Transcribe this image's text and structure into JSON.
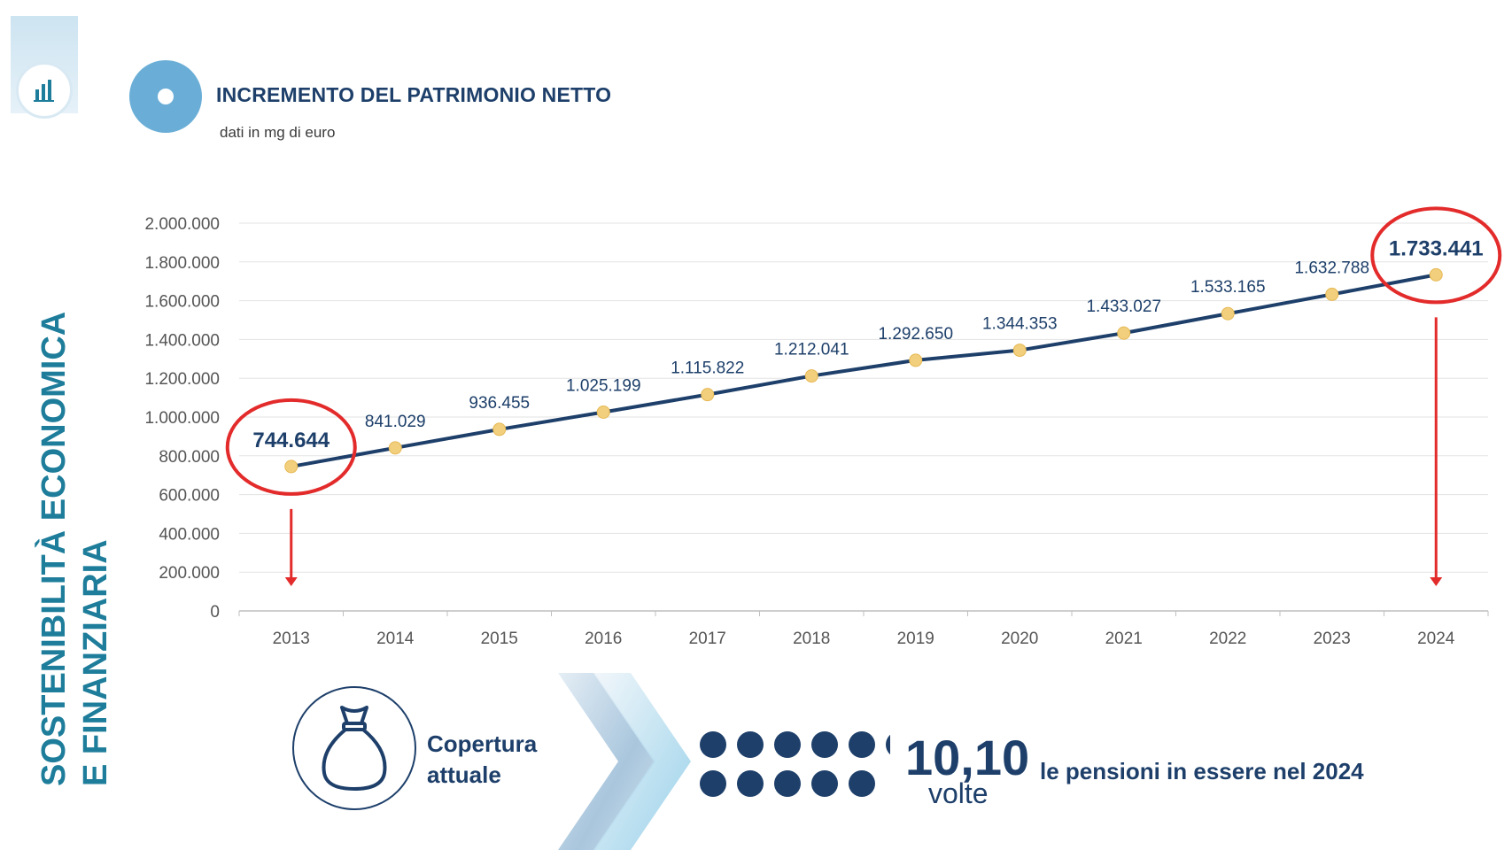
{
  "header": {
    "title": "INCREMENTO DEL PATRIMONIO NETTO",
    "subtitle": "dati in mg di euro"
  },
  "sidebar": {
    "line1": "SOSTENIBILITÀ ECONOMICA",
    "line2": "E FINANZIARIA"
  },
  "chart_data": {
    "type": "line",
    "title": "",
    "xlabel": "",
    "ylabel": "",
    "ylim": [
      0,
      2000000
    ],
    "y_ticks": [
      "0",
      "200.000",
      "400.000",
      "600.000",
      "800.000",
      "1.000.000",
      "1.200.000",
      "1.400.000",
      "1.600.000",
      "1.800.000",
      "2.000.000"
    ],
    "grid": true,
    "categories": [
      "2013",
      "2014",
      "2015",
      "2016",
      "2017",
      "2018",
      "2019",
      "2020",
      "2021",
      "2022",
      "2023",
      "2024"
    ],
    "series": [
      {
        "values": [
          744644,
          841029,
          936455,
          1025199,
          1115822,
          1212041,
          1292650,
          1344353,
          1433027,
          1533165,
          1632788,
          1733441
        ],
        "labels": [
          "744.644",
          "841.029",
          "936.455",
          "1.025.199",
          "1.115.822",
          "1.212.041",
          "1.292.650",
          "1.344.353",
          "1.433.027",
          "1.533.165",
          "1.632.788",
          "1.733.441"
        ]
      }
    ],
    "highlighted": [
      "2013",
      "2024"
    ],
    "colors": {
      "line": "#1d3f6a",
      "marker": "#f2cf7d",
      "highlight": "#e32b2b",
      "grid": "#e3e3e3"
    }
  },
  "coverage": {
    "label_line1": "Copertura",
    "label_line2": "attuale",
    "value": "10,10",
    "unit": "volte",
    "description": "le pensioni in essere nel 2024"
  }
}
